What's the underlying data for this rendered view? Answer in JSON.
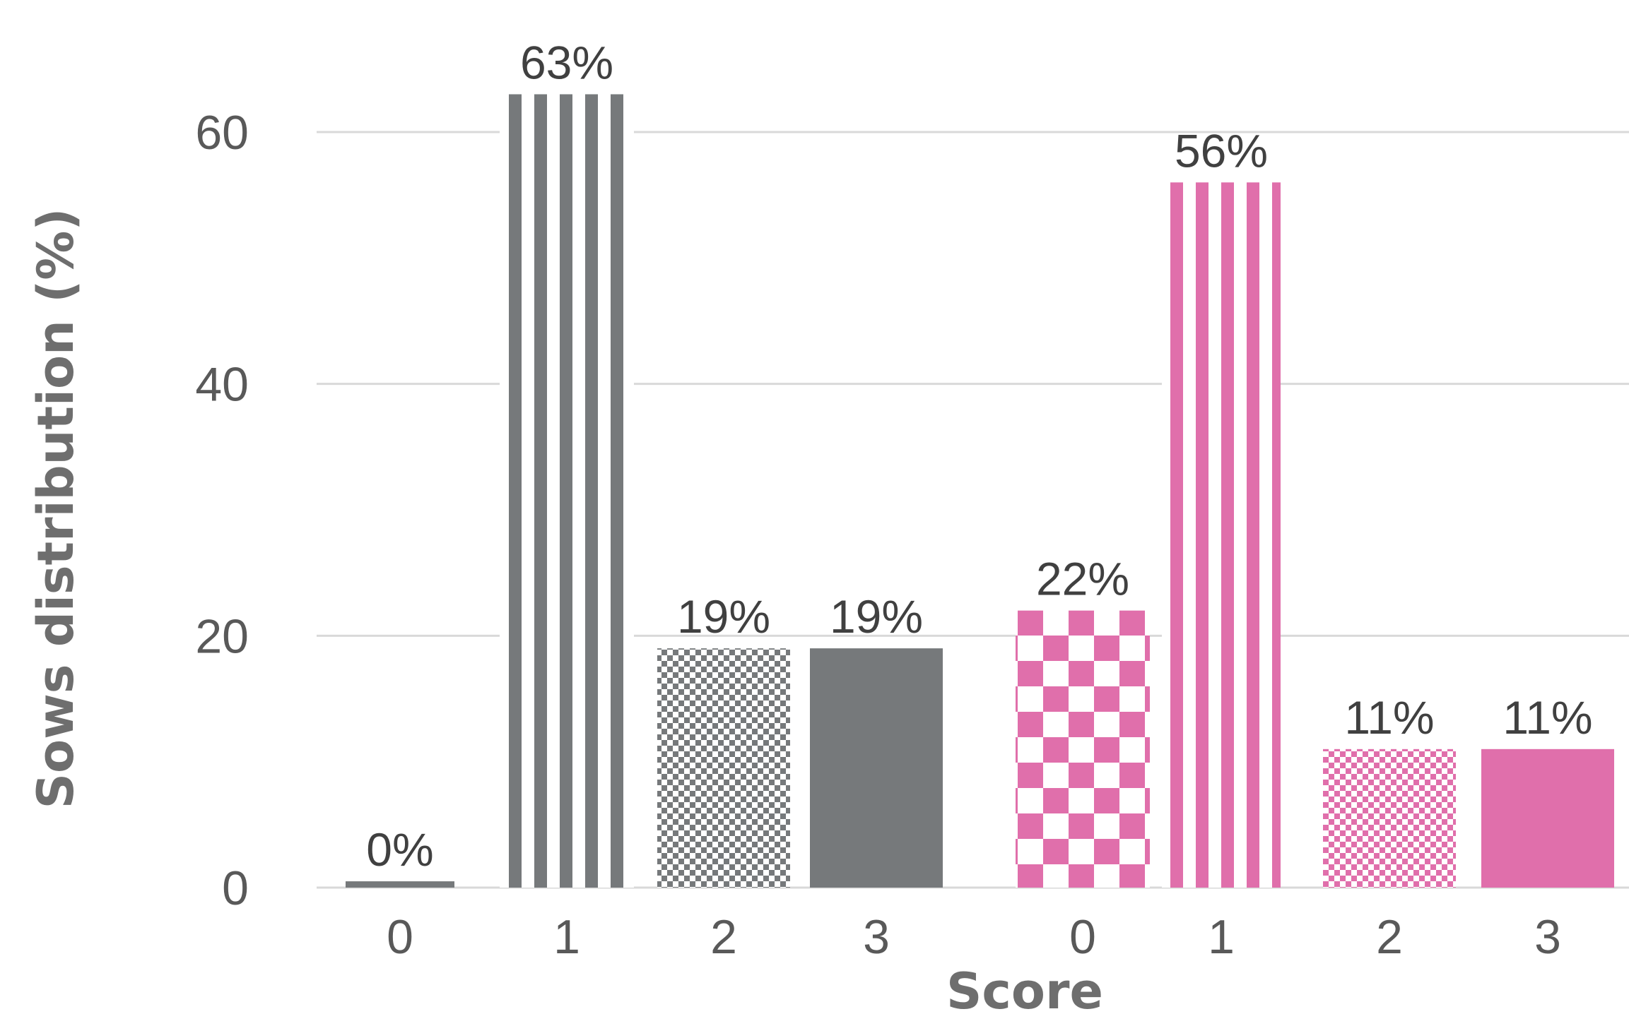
{
  "chart_data": {
    "type": "bar",
    "xlabel": "Score",
    "ylabel": "Sows distribution (%)",
    "ylim": [
      0,
      60
    ],
    "yticks": [
      0,
      20,
      40,
      60
    ],
    "grid": true,
    "categories": [
      "0",
      "1",
      "2",
      "3",
      "0",
      "1",
      "2",
      "3"
    ],
    "values": [
      0.5,
      63,
      19,
      19,
      22,
      56,
      11,
      11
    ],
    "data_labels": [
      "0%",
      "63%",
      "19%",
      "19%",
      "22%",
      "56%",
      "11%",
      "11%"
    ],
    "colors": {
      "group_1": "#76797b",
      "group_2": "#e06fab",
      "grid": "#d9d9d9"
    },
    "fill_patterns": [
      "solid",
      "vertical-stripes",
      "small-checker",
      "solid",
      "large-checker",
      "vertical-stripes",
      "small-checker",
      "solid"
    ]
  }
}
